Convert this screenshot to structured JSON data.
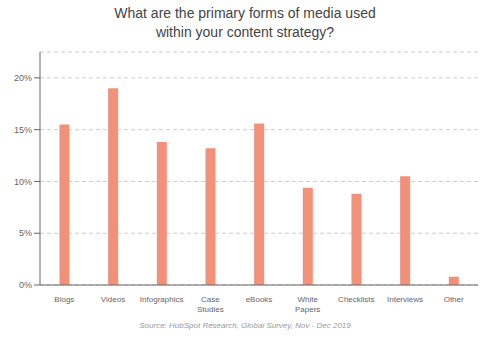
{
  "chart_data": {
    "type": "bar",
    "title": "What are the primary forms of media used\nwithin your content strategy?",
    "annotations": [
      "Source: HubSpot Research, Global Survey, Nov - Dec 2019"
    ],
    "categories": [
      "Blogs",
      "Videos",
      "Infographics",
      "Case\nStudies",
      "eBooks",
      "White\nPapers",
      "Checklists",
      "Interviews",
      "Other"
    ],
    "values": [
      0.155,
      0.19,
      0.138,
      0.132,
      0.156,
      0.094,
      0.088,
      0.105,
      0.008
    ],
    "color": "#F2917A",
    "ylim": [
      0,
      0.225
    ],
    "yticks": [
      {
        "value": 0,
        "label": "0%"
      },
      {
        "value": 0.05,
        "label": "5%"
      },
      {
        "value": 0.1,
        "label": "10%"
      },
      {
        "value": 0.15,
        "label": "15%"
      },
      {
        "value": 0.2,
        "label": "20%"
      }
    ],
    "grid": true
  }
}
